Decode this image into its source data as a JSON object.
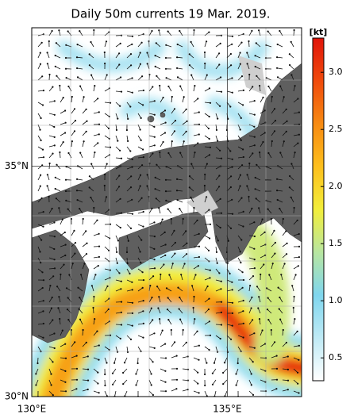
{
  "chart_data": {
    "type": "map",
    "title": "Daily 50m currents 19 Mar. 2019.",
    "xlim": [
      130,
      136.9
    ],
    "ylim": [
      30,
      38
    ],
    "xticks": [
      {
        "value": 130,
        "label": "130°E"
      },
      {
        "value": 135,
        "label": "135°E"
      }
    ],
    "yticks": [
      {
        "value": 30,
        "label": "30°N"
      },
      {
        "value": 35,
        "label": "35°N"
      }
    ],
    "colorbar": {
      "label": "[kt]",
      "lim": [
        0.3,
        3.3
      ],
      "ticks": [
        0.5,
        {
          "value": 1,
          "label": "1.0"
        },
        1.5,
        {
          "value": 2,
          "label": "2.0"
        },
        2.5,
        {
          "value": 3,
          "label": "3.0"
        }
      ],
      "colors": [
        "#ffffff",
        "#bfeaf5",
        "#7fd6ee",
        "#b8e6a0",
        "#f2ee3a",
        "#fdbf1c",
        "#f78a12",
        "#f04a0c",
        "#e0140a"
      ]
    }
  }
}
